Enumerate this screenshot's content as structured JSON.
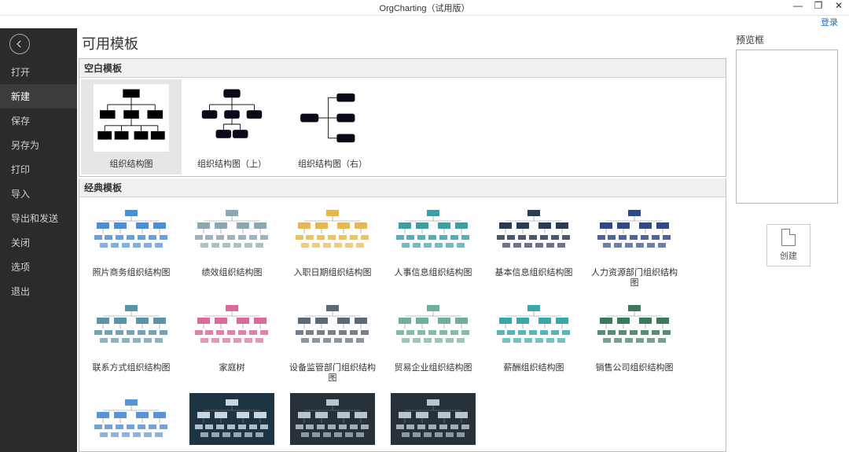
{
  "titlebar": {
    "title": "OrgCharting（试用版）",
    "login": "登录"
  },
  "sidebar": {
    "items": [
      {
        "label": "打开"
      },
      {
        "label": "新建",
        "active": true
      },
      {
        "label": "保存"
      },
      {
        "label": "另存为"
      },
      {
        "label": "打印"
      },
      {
        "label": "导入"
      },
      {
        "label": "导出和发送"
      },
      {
        "label": "关闭"
      },
      {
        "label": "选项"
      },
      {
        "label": "退出"
      }
    ]
  },
  "page_title": "可用模板",
  "sections": {
    "blank": {
      "title": "空白模板",
      "items": [
        {
          "label": "组织结构图",
          "thumb_type": "org-center",
          "selected": true
        },
        {
          "label": "组织结构图（上）",
          "thumb_type": "org-top"
        },
        {
          "label": "组织结构图（右）",
          "thumb_type": "org-right"
        }
      ]
    },
    "classic": {
      "title": "经典模板",
      "items": [
        {
          "label": "照片商务组织结构图",
          "thumb_bg": "#ffffff",
          "accent": "#4a90d9"
        },
        {
          "label": "绩效组织结构图",
          "thumb_bg": "#ffffff",
          "accent": "#8aa7b5"
        },
        {
          "label": "入职日期组织结构图",
          "thumb_bg": "#ffffff",
          "accent": "#e8b84a"
        },
        {
          "label": "人事信息组织结构图",
          "thumb_bg": "#ffffff",
          "accent": "#3aa0a8"
        },
        {
          "label": "基本信息组织结构图",
          "thumb_bg": "#ffffff",
          "accent": "#2a3b55"
        },
        {
          "label": "人力资源部门组织结构图",
          "thumb_bg": "#ffffff",
          "accent": "#2f4a8a"
        },
        {
          "label": "联系方式组织结构图",
          "thumb_bg": "#ffffff",
          "accent": "#5a93a8"
        },
        {
          "label": "家庭树",
          "thumb_bg": "#ffffff",
          "accent": "#d96b9a"
        },
        {
          "label": "设备监管部门组织结构图",
          "thumb_bg": "#ffffff",
          "accent": "#5c6a78"
        },
        {
          "label": "贸易企业组织结构图",
          "thumb_bg": "#ffffff",
          "accent": "#6fae9e"
        },
        {
          "label": "薪酬组织结构图",
          "thumb_bg": "#ffffff",
          "accent": "#39a8a8"
        },
        {
          "label": "销售公司组织结构图",
          "thumb_bg": "#ffffff",
          "accent": "#3a7a5a"
        },
        {
          "label": "",
          "thumb_bg": "#ffffff",
          "accent": "#5a93d8"
        },
        {
          "label": "",
          "thumb_bg": "#1e3442",
          "accent": "#c9d6df",
          "dark": true
        },
        {
          "label": "",
          "thumb_bg": "#26313a",
          "accent": "#b9c4cc",
          "dark": true
        },
        {
          "label": "",
          "thumb_bg": "#26313a",
          "accent": "#b9c4cc",
          "dark": true
        }
      ]
    }
  },
  "preview": {
    "title": "预览框",
    "create_label": "创建"
  },
  "colors": {
    "sidebar_bg": "#2b2b2b",
    "sidebar_active": "#3c3c3c",
    "border": "#bfbfbf",
    "section_header_bg": "#f0f0f0"
  }
}
